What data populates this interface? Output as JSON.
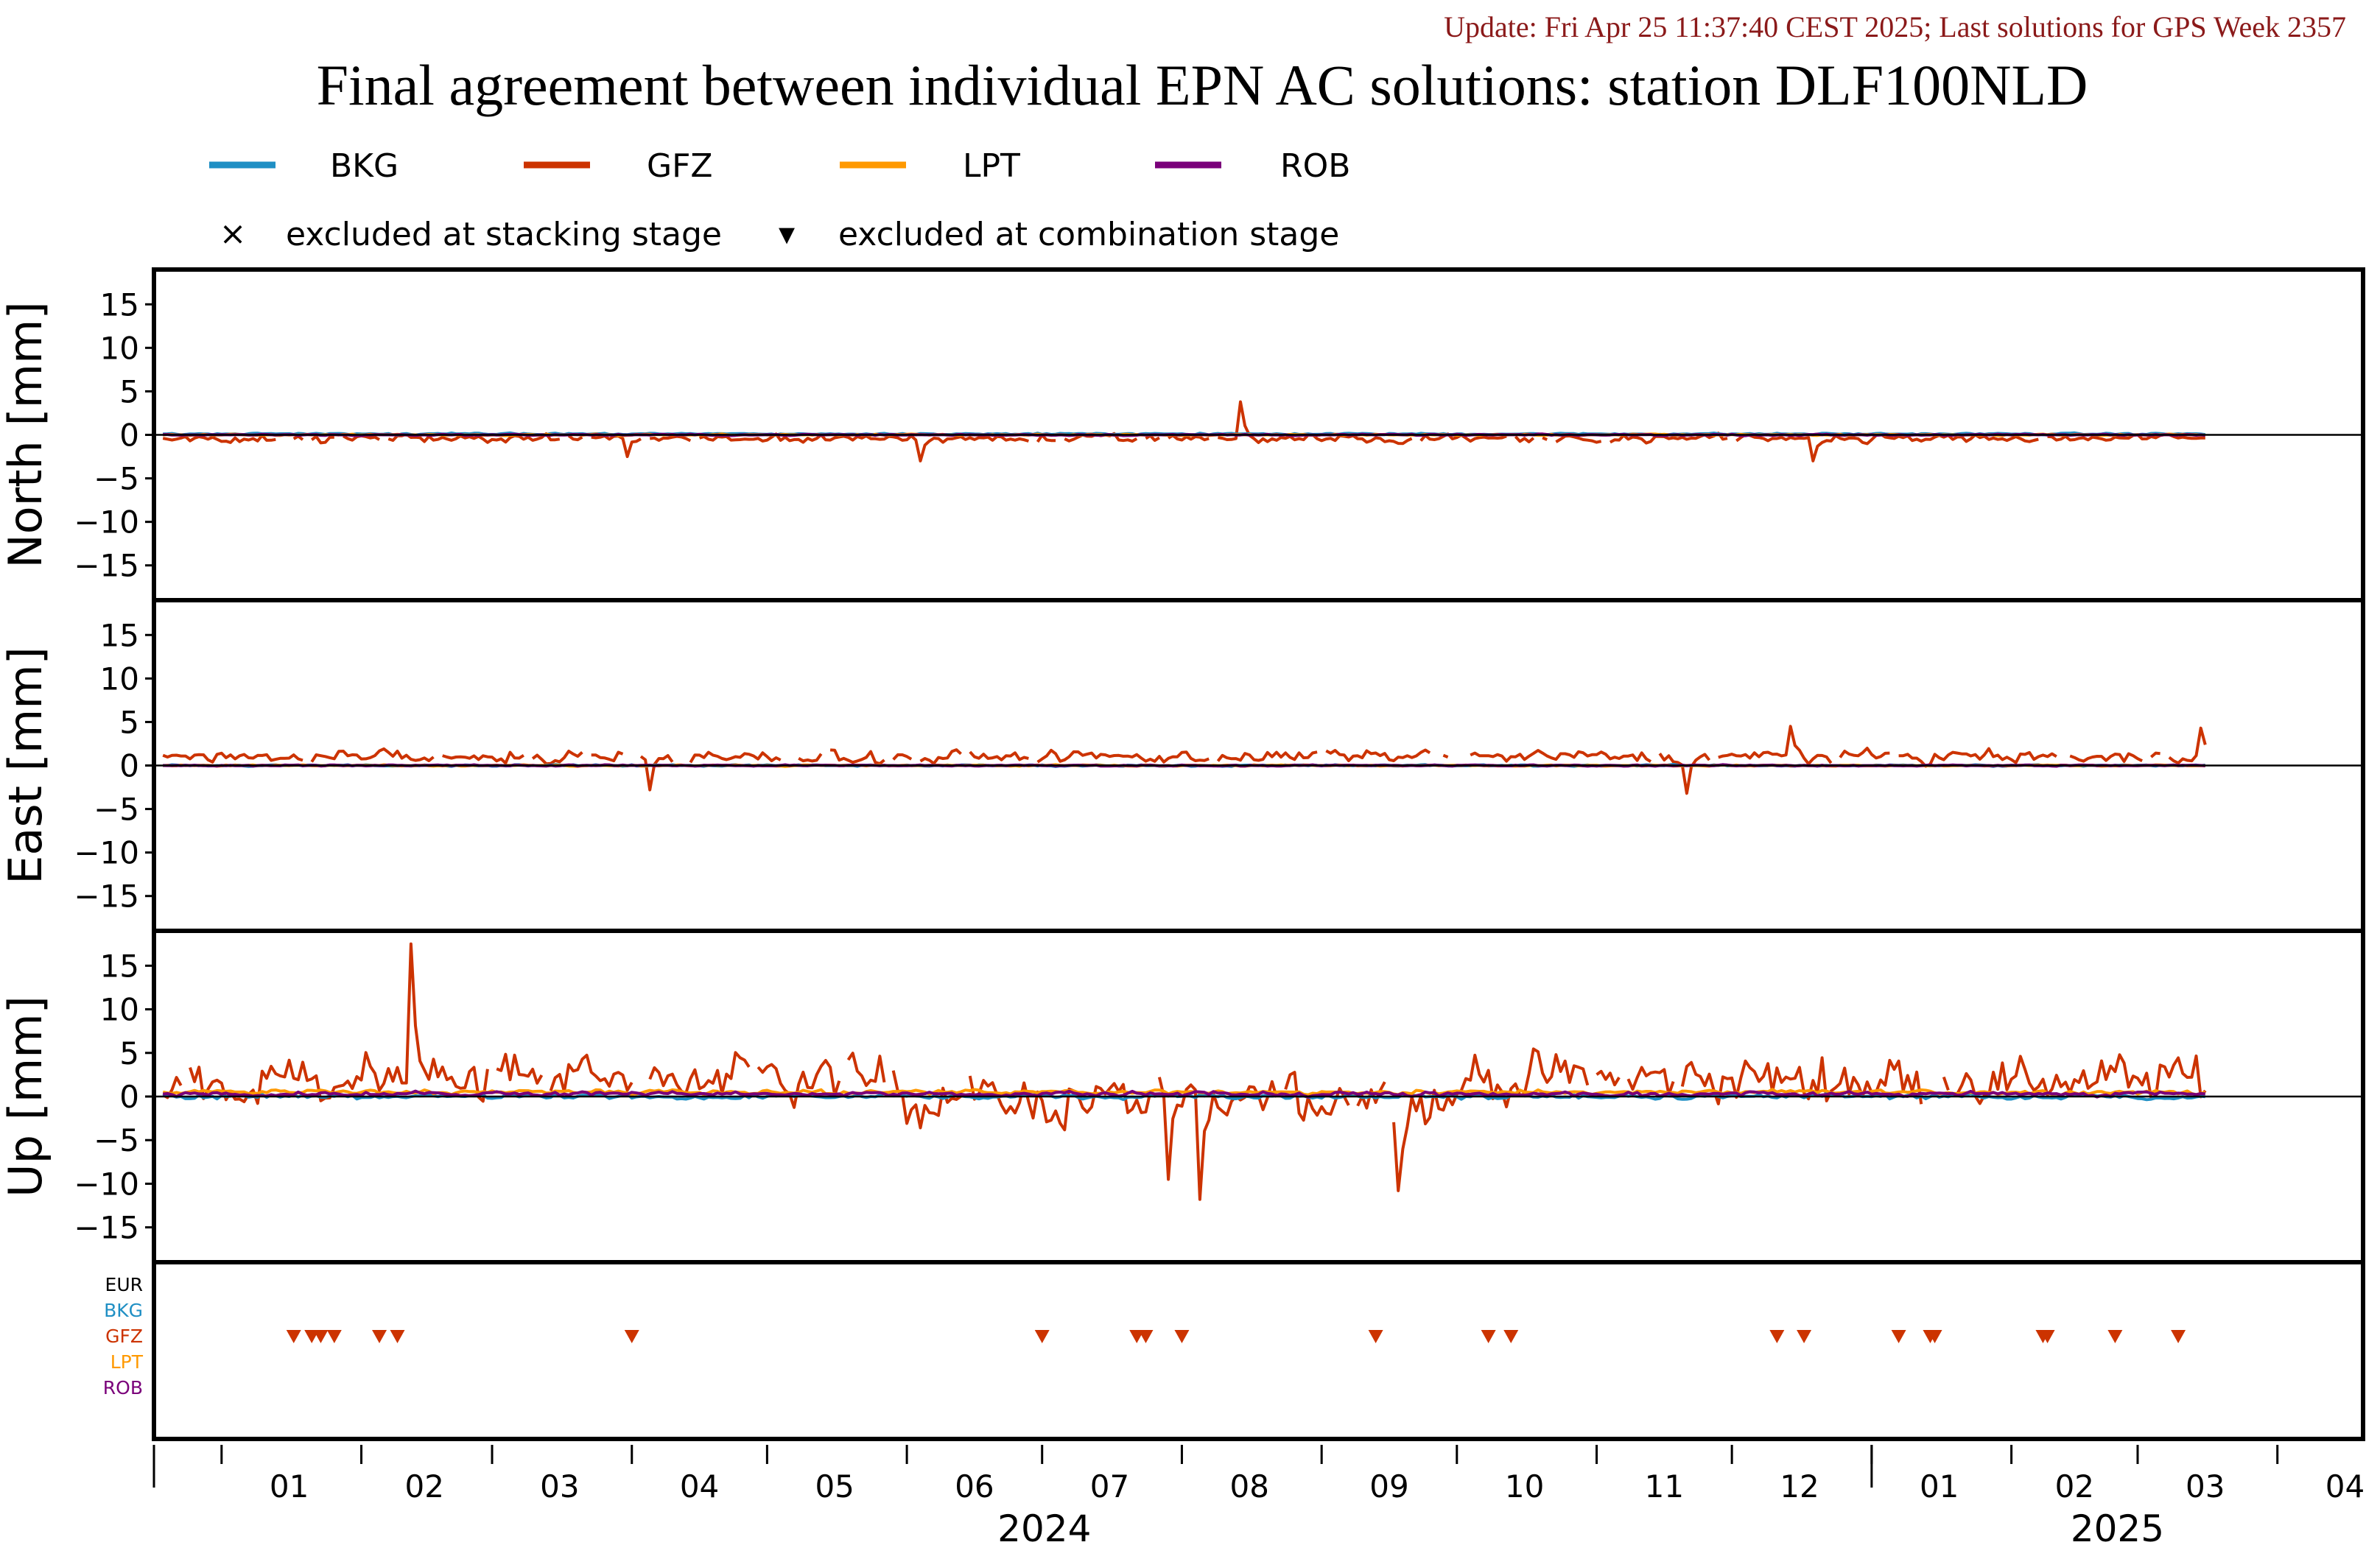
{
  "header": {
    "update": "Update: Fri Apr 25 11:37:40 CEST 2025; Last solutions for GPS Week 2357",
    "title": "Final agreement between individual EPN AC solutions: station DLF100NLD"
  },
  "legend": {
    "series": [
      {
        "name": "BKG",
        "color": "#1f8fc4"
      },
      {
        "name": "GFZ",
        "color": "#cc3300"
      },
      {
        "name": "LPT",
        "color": "#ff9900"
      },
      {
        "name": "ROB",
        "color": "#7a007a"
      }
    ],
    "markers": [
      {
        "symbol": "×",
        "label": "excluded at stacking stage"
      },
      {
        "symbol": "▾",
        "label": "excluded at combination stage"
      }
    ]
  },
  "colors": {
    "reference_line": "#000000",
    "frame": "#000000",
    "update_text": "#8b1a1a"
  },
  "chart_data": {
    "type": "line",
    "x_axis": {
      "range": [
        "2023-12-17",
        "2025-04-20"
      ],
      "month_ticks": [
        "01",
        "02",
        "03",
        "04",
        "05",
        "06",
        "07",
        "08",
        "09",
        "10",
        "11",
        "12",
        "01",
        "02",
        "03",
        "04"
      ],
      "month_tick_dates": [
        "2024-01-01",
        "2024-02-01",
        "2024-03-01",
        "2024-04-01",
        "2024-05-01",
        "2024-06-01",
        "2024-07-01",
        "2024-08-01",
        "2024-09-01",
        "2024-10-01",
        "2024-11-01",
        "2024-12-01",
        "2025-01-01",
        "2025-02-01",
        "2025-03-01",
        "2025-04-01"
      ],
      "years": [
        "2024",
        "2025"
      ],
      "year_boundary": "2025-01-01"
    },
    "panels": [
      {
        "ylabel": "North [mm]",
        "ylim": [
          -19,
          19
        ],
        "yticks": [
          15,
          10,
          5,
          0,
          -5,
          -10,
          -15
        ],
        "reference_line": 0,
        "series": [
          {
            "name": "GFZ",
            "amplitude": 1.0,
            "offset": -0.4
          },
          {
            "name": "BKG",
            "amplitude": 0.2,
            "offset": 0.1
          },
          {
            "name": "LPT",
            "amplitude": 0.15,
            "offset": 0.0
          },
          {
            "name": "ROB",
            "amplitude": 0.15,
            "offset": 0.0
          }
        ],
        "spikes": [
          {
            "date": "2024-08-14",
            "value": 3.8
          },
          {
            "date": "2024-12-19",
            "value": -3.0
          },
          {
            "date": "2024-03-31",
            "value": -2.5
          },
          {
            "date": "2024-06-04",
            "value": -3.0
          }
        ]
      },
      {
        "ylabel": "East [mm]",
        "ylim": [
          -19,
          19
        ],
        "yticks": [
          15,
          10,
          5,
          0,
          -5,
          -10,
          -15
        ],
        "reference_line": 0,
        "series": [
          {
            "name": "GFZ",
            "amplitude": 1.5,
            "offset": 1.0
          },
          {
            "name": "BKG",
            "amplitude": 0.2,
            "offset": 0.0
          },
          {
            "name": "LPT",
            "amplitude": 0.15,
            "offset": 0.0
          },
          {
            "name": "ROB",
            "amplitude": 0.15,
            "offset": 0.0
          }
        ],
        "spikes": [
          {
            "date": "2024-11-21",
            "value": -3.2
          },
          {
            "date": "2024-04-05",
            "value": -2.8
          },
          {
            "date": "2024-12-14",
            "value": 4.5
          },
          {
            "date": "2025-03-15",
            "value": 4.3
          }
        ]
      },
      {
        "ylabel": "Up [mm]",
        "ylim": [
          -19,
          19
        ],
        "yticks": [
          15,
          10,
          5,
          0,
          -5,
          -10,
          -15
        ],
        "reference_line": 0,
        "series": [
          {
            "name": "GFZ",
            "amplitude": 6.0,
            "offset": 2.0
          },
          {
            "name": "BKG",
            "amplitude": 0.6,
            "offset": 0.0
          },
          {
            "name": "LPT",
            "amplitude": 0.5,
            "offset": 0.5
          },
          {
            "name": "ROB",
            "amplitude": 0.5,
            "offset": 0.3
          }
        ],
        "spikes": [
          {
            "date": "2024-02-12",
            "value": 17.5
          },
          {
            "date": "2024-08-05",
            "value": -11.8
          },
          {
            "date": "2024-09-18",
            "value": -10.8
          },
          {
            "date": "2024-07-29",
            "value": -9.5
          }
        ]
      }
    ],
    "exclusion_panel": {
      "rows": [
        {
          "label": "EUR",
          "color": "#000000"
        },
        {
          "label": "BKG",
          "color": "#1f8fc4"
        },
        {
          "label": "GFZ",
          "color": "#cc3300"
        },
        {
          "label": "LPT",
          "color": "#ff9900"
        },
        {
          "label": "ROB",
          "color": "#7a007a"
        }
      ],
      "gfz_excluded_at_combination": [
        "2024-01-17",
        "2024-01-21",
        "2024-01-23",
        "2024-01-26",
        "2024-02-05",
        "2024-02-09",
        "2024-04-01",
        "2024-07-01",
        "2024-07-22",
        "2024-07-24",
        "2024-08-01",
        "2024-09-13",
        "2024-10-08",
        "2024-10-13",
        "2024-12-11",
        "2024-12-17",
        "2025-01-07",
        "2025-01-14",
        "2025-01-15",
        "2025-02-08",
        "2025-02-09",
        "2025-02-24",
        "2025-03-10"
      ]
    }
  }
}
